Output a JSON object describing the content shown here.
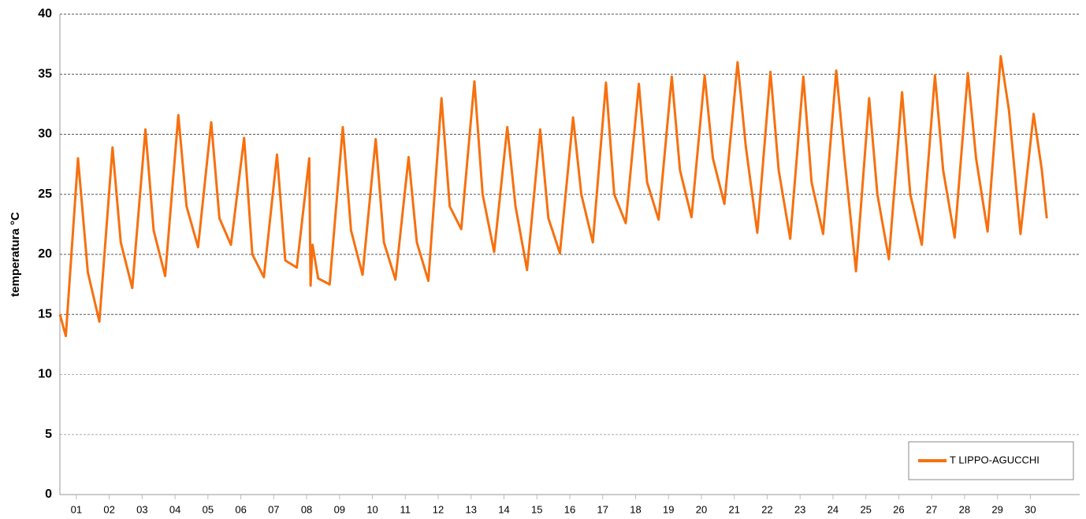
{
  "chart_data": {
    "type": "line",
    "y_label": "temperatura °C",
    "xlim": [
      0,
      31
    ],
    "xticks": [
      {
        "value": 0.5,
        "label": "01"
      },
      {
        "value": 1.5,
        "label": "02"
      },
      {
        "value": 2.5,
        "label": "03"
      },
      {
        "value": 3.5,
        "label": "04"
      },
      {
        "value": 4.5,
        "label": "05"
      },
      {
        "value": 5.5,
        "label": "06"
      },
      {
        "value": 6.5,
        "label": "07"
      },
      {
        "value": 7.5,
        "label": "08"
      },
      {
        "value": 8.5,
        "label": "09"
      },
      {
        "value": 9.5,
        "label": "10"
      },
      {
        "value": 10.5,
        "label": "11"
      },
      {
        "value": 11.5,
        "label": "12"
      },
      {
        "value": 12.5,
        "label": "13"
      },
      {
        "value": 13.5,
        "label": "14"
      },
      {
        "value": 14.5,
        "label": "15"
      },
      {
        "value": 15.5,
        "label": "16"
      },
      {
        "value": 16.5,
        "label": "17"
      },
      {
        "value": 17.5,
        "label": "18"
      },
      {
        "value": 18.5,
        "label": "19"
      },
      {
        "value": 19.5,
        "label": "20"
      },
      {
        "value": 20.5,
        "label": "21"
      },
      {
        "value": 21.5,
        "label": "22"
      },
      {
        "value": 22.5,
        "label": "23"
      },
      {
        "value": 23.5,
        "label": "24"
      },
      {
        "value": 24.5,
        "label": "25"
      },
      {
        "value": 25.5,
        "label": "26"
      },
      {
        "value": 26.5,
        "label": "27"
      },
      {
        "value": 27.5,
        "label": "28"
      },
      {
        "value": 28.5,
        "label": "29"
      },
      {
        "value": 29.5,
        "label": "30"
      }
    ],
    "ylim": [
      0,
      40
    ],
    "yticks": [
      0,
      5,
      10,
      15,
      20,
      25,
      30,
      35,
      40
    ],
    "grid": true,
    "legend": "lower right",
    "x": [
      0,
      0.18,
      0.55,
      0.85,
      1.2,
      1.6,
      1.85,
      2.2,
      2.6,
      2.85,
      3.2,
      3.6,
      3.85,
      4.2,
      4.6,
      4.85,
      5.2,
      5.6,
      5.85,
      6.2,
      6.6,
      6.85,
      7.2,
      7.58,
      7.62,
      7.68,
      7.85,
      8.2,
      8.6,
      8.85,
      9.2,
      9.6,
      9.85,
      10.2,
      10.6,
      10.85,
      11.2,
      11.6,
      11.85,
      12.2,
      12.6,
      12.85,
      13.2,
      13.6,
      13.85,
      14.2,
      14.6,
      14.85,
      15.2,
      15.6,
      15.85,
      16.2,
      16.6,
      16.85,
      17.2,
      17.6,
      17.85,
      18.2,
      18.6,
      18.85,
      19.2,
      19.6,
      19.85,
      20.2,
      20.6,
      20.85,
      21.2,
      21.6,
      21.85,
      22.2,
      22.6,
      22.85,
      23.2,
      23.6,
      23.85,
      24.2,
      24.6,
      24.85,
      25.2,
      25.6,
      25.85,
      26.2,
      26.6,
      26.85,
      27.2,
      27.6,
      27.85,
      28.2,
      28.6,
      28.85,
      29.2,
      29.6,
      29.85,
      30.0
    ],
    "series": [
      {
        "name": "T LIPPO-AGUCCHI",
        "color": "#f7700f",
        "values": [
          15,
          13.2,
          28,
          18.5,
          14.4,
          28.9,
          21,
          17.2,
          30.4,
          22,
          18.2,
          31.6,
          24,
          20.6,
          31,
          23,
          20.8,
          29.7,
          20,
          18.1,
          28.3,
          19.5,
          18.9,
          28,
          17.4,
          20.8,
          18,
          17.5,
          30.6,
          22,
          18.3,
          29.6,
          21,
          17.9,
          28.1,
          21,
          17.8,
          33,
          24,
          22.1,
          34.4,
          25,
          20.2,
          30.6,
          24,
          18.7,
          30.4,
          23,
          20.1,
          31.4,
          25,
          21,
          34.3,
          25,
          22.6,
          34.2,
          26,
          22.9,
          34.8,
          27,
          23.1,
          34.9,
          28,
          24.2,
          36,
          29,
          21.8,
          35.2,
          27,
          21.3,
          34.8,
          26,
          21.7,
          35.3,
          28,
          18.6,
          33,
          25,
          19.6,
          33.5,
          25,
          20.8,
          34.9,
          27,
          21.4,
          35.1,
          28,
          21.9,
          36.5,
          32,
          21.7,
          31.7,
          27,
          23
        ]
      }
    ]
  }
}
